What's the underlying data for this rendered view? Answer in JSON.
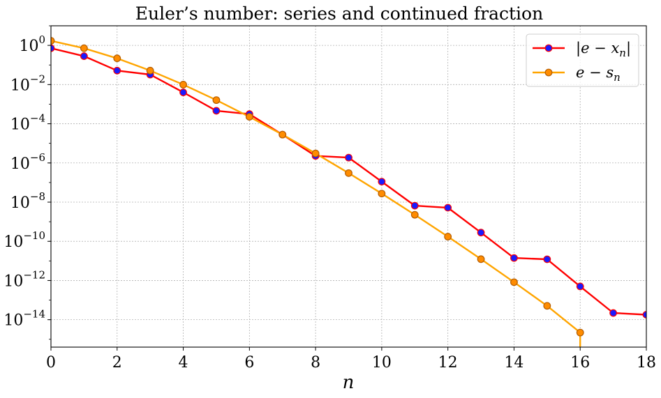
{
  "chart_data": {
    "type": "line",
    "title": "Euler’s number: series and continued fraction",
    "xlabel": "n",
    "ylabel": "",
    "xscale": "linear",
    "yscale": "log",
    "xlim": [
      0,
      18
    ],
    "ylim_exponent": [
      -15.4,
      1.0
    ],
    "grid": true,
    "legend_position": "top-right",
    "x_ticks": [
      "0",
      "2",
      "4",
      "6",
      "8",
      "10",
      "12",
      "14",
      "16",
      "18"
    ],
    "y_ticks": [
      {
        "base": "10",
        "exp": "0"
      },
      {
        "base": "10",
        "exp": "−2"
      },
      {
        "base": "10",
        "exp": "−4"
      },
      {
        "base": "10",
        "exp": "−6"
      },
      {
        "base": "10",
        "exp": "−8"
      },
      {
        "base": "10",
        "exp": "−10"
      },
      {
        "base": "10",
        "exp": "−12"
      },
      {
        "base": "10",
        "exp": "−14"
      }
    ],
    "series": [
      {
        "name": "|e − x_n|",
        "legend_label": {
          "pre": "|e − x",
          "sub": "n",
          "post": "|"
        },
        "line_color": "#ff0000",
        "marker_face": "#1a1aff",
        "marker_edge": "#ff0000",
        "x": [
          0,
          1,
          2,
          3,
          4,
          5,
          6,
          7,
          8,
          9,
          10,
          11,
          12,
          13,
          14,
          15,
          16,
          17,
          18
        ],
        "y": [
          0.718,
          0.282,
          0.0516,
          0.0323,
          0.00399,
          0.000459,
          0.000312,
          2.8e-05,
          2.28e-06,
          1.87e-06,
          1.11e-07,
          6.57e-09,
          5.2e-09,
          2.79e-10,
          1.41e-11,
          1.21e-11,
          5e-13,
          2.2e-14,
          1.8e-14
        ]
      },
      {
        "name": "e − s_n",
        "legend_label": {
          "pre": "e − s",
          "sub": "n",
          "post": ""
        },
        "line_color": "#ffa500",
        "marker_face": "#ff8c00",
        "marker_edge": "#b35c00",
        "x": [
          0,
          1,
          2,
          3,
          4,
          5,
          6,
          7,
          8,
          9,
          10,
          11,
          12,
          13,
          14,
          15,
          16
        ],
        "y": [
          1.718,
          0.718,
          0.218,
          0.0516,
          0.00995,
          0.00161,
          0.000226,
          2.79e-05,
          3.06e-06,
          3.03e-07,
          2.73e-08,
          2.26e-09,
          1.73e-10,
          1.23e-11,
          8.2e-13,
          5.1e-14,
          2.2e-15
        ],
        "tail_to_zero": true
      }
    ]
  }
}
